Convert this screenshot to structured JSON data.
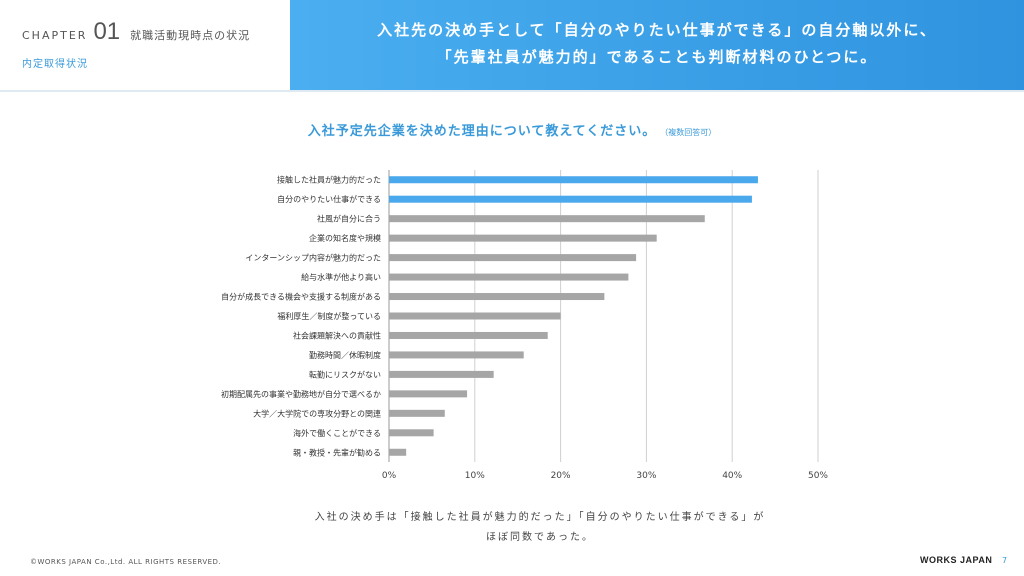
{
  "header": {
    "chapter_word": "CHAPTER",
    "chapter_number": "01",
    "chapter_title": "就職活動現時点の状況",
    "subsection": "内定取得状況",
    "headline_line1": "入社先の決め手として「自分のやりたい仕事ができる」の自分軸以外に、",
    "headline_line2": "「先輩社員が魅力的」であることも判断材料のひとつに。"
  },
  "colors": {
    "accent": "#3a9ad9",
    "highlight_bar": "#4aa8ec",
    "normal_bar": "#a6a6a6",
    "grid": "#d0d0d0"
  },
  "chart_data": {
    "type": "bar",
    "orientation": "horizontal",
    "title": "入社予定先企業を決めた理由について教えてください。",
    "title_note": "（複数回答可）",
    "categories": [
      "接触した社員が魅力的だった",
      "自分のやりたい仕事ができる",
      "社風が自分に合う",
      "企業の知名度や規模",
      "インターンシップ内容が魅力的だった",
      "給与水準が他より高い",
      "自分が成長できる機会や支援する制度がある",
      "福利厚生／制度が整っている",
      "社会課題解決への貢献性",
      "勤務時間／休暇制度",
      "転勤にリスクがない",
      "初期配属先の事業や勤務地が自分で選べるか",
      "大学／大学院での専攻分野との関連",
      "海外で働くことができる",
      "親・教授・先輩が勧める"
    ],
    "values": [
      43,
      42.3,
      36.8,
      31.2,
      28.8,
      27.9,
      25.1,
      20,
      18.5,
      15.7,
      12.2,
      9.1,
      6.5,
      5.2,
      2
    ],
    "highlight": [
      true,
      true,
      false,
      false,
      false,
      false,
      false,
      false,
      false,
      false,
      false,
      false,
      false,
      false,
      false
    ],
    "xlim": [
      0,
      50
    ],
    "ticks": [
      0,
      10,
      20,
      30,
      40,
      50
    ],
    "tick_labels": [
      "0%",
      "10%",
      "20%",
      "30%",
      "40%",
      "50%"
    ],
    "xlabel": "",
    "ylabel": "",
    "grid": true
  },
  "summary_line1": "入社の決め手は「接触した社員が魅力的だった」「自分のやりたい仕事ができる」が",
  "summary_line2": "ほぼ同数であった。",
  "footer": {
    "copyright": "©WORKS JAPAN Co.,Ltd. ALL RIGHTS RESERVED.",
    "logo_text": "WORKS JAPAN",
    "page_number": "7"
  }
}
